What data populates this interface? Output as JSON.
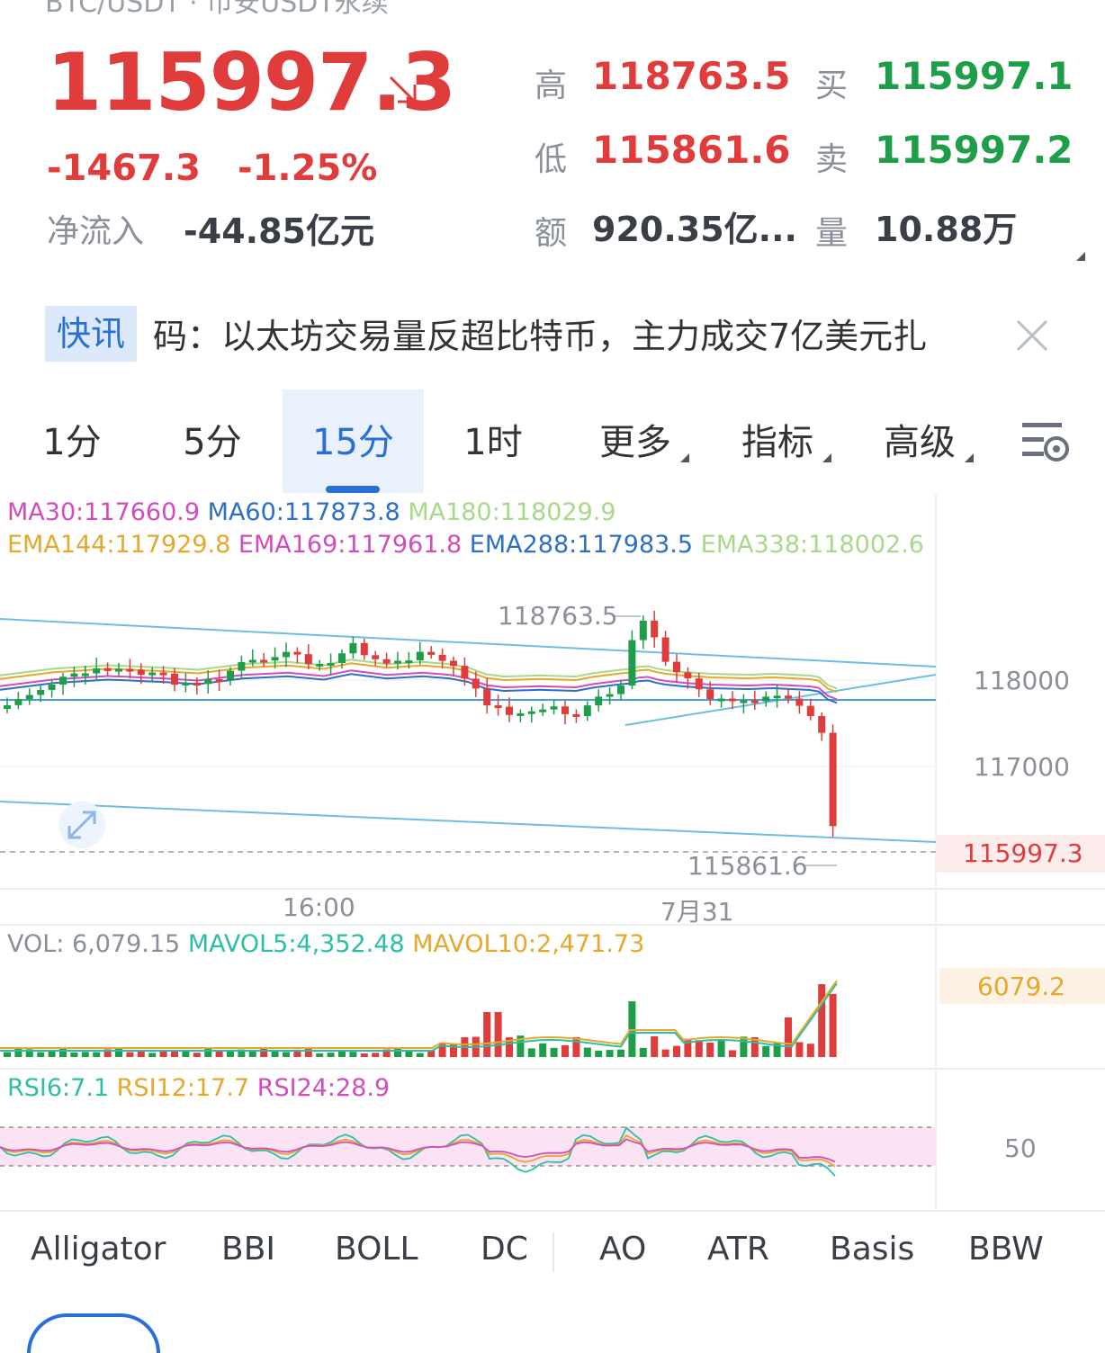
{
  "header": {
    "title": "BTC/USDT · 币安USDT永续",
    "price": "115997.3",
    "change_abs": "-1467.3",
    "change_pct": "-1.25%",
    "netflow_label": "净流入",
    "netflow_value": "-44.85亿元"
  },
  "stats": {
    "high_label": "高",
    "high": "118763.5",
    "buy_label": "买",
    "buy": "115997.1",
    "low_label": "低",
    "low": "115861.6",
    "sell_label": "卖",
    "sell": "115997.2",
    "amount_label": "额",
    "amount": "920.35亿...",
    "volume_label": "量",
    "volume": "10.88万"
  },
  "news": {
    "tag": "快讯",
    "text": "码：以太坊交易量反超比特币，主力成交7亿美元扎"
  },
  "tabs": [
    "1分",
    "5分",
    "15分",
    "1时",
    "更多",
    "指标",
    "高级"
  ],
  "active_tab": "15分",
  "indicators": {
    "ma30": "MA30:117660.9",
    "ma60": "MA60:117873.8",
    "ma180": "MA180:118029.9",
    "ema144": "EMA144:117929.8",
    "ema169": "EMA169:117961.8",
    "ema288": "EMA288:117983.5",
    "ema338": "EMA338:118002.6"
  },
  "chart": {
    "high_marker": "118763.5",
    "low_marker": "115861.6",
    "y_ticks": [
      "118000",
      "117000"
    ],
    "current_price": "115997.3",
    "x_ticks": [
      "16:00",
      "7月31"
    ]
  },
  "volume": {
    "vol": "VOL: 6,079.15",
    "mavol5": "MAVOL5:4,352.48",
    "mavol10": "MAVOL10:2,471.73",
    "current": "6079.2"
  },
  "rsi": {
    "rsi6": "RSI6:7.1",
    "rsi12": "RSI12:17.7",
    "rsi24": "RSI24:28.9",
    "level": "50"
  },
  "bottom_tabs": [
    "Alligator",
    "BBI",
    "BOLL",
    "DC",
    "AO",
    "ATR",
    "Basis",
    "BBW"
  ],
  "colors": {
    "up": "#1f9e4a",
    "down": "#e03c3c",
    "accent": "#2a6fd6"
  }
}
